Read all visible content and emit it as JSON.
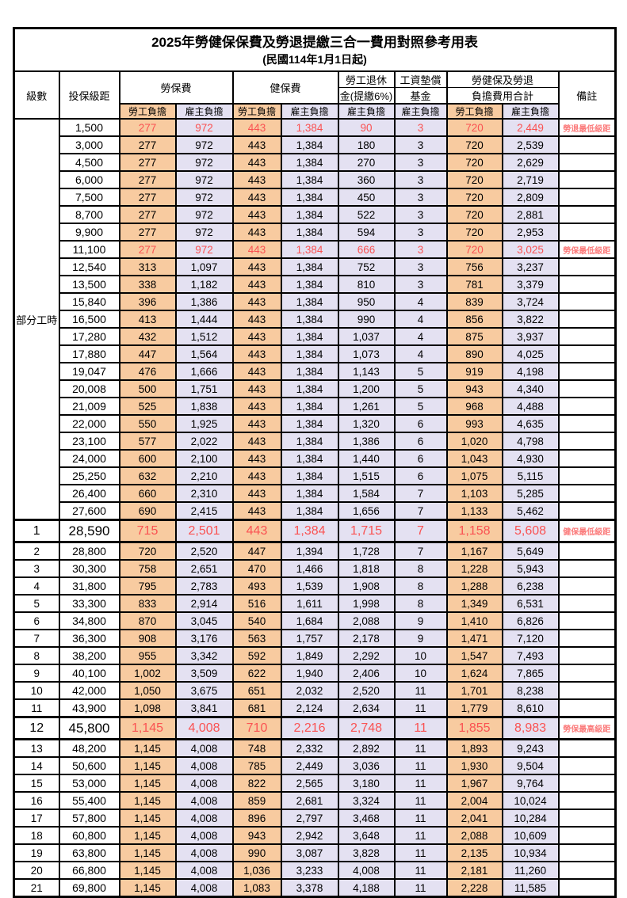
{
  "title": "2025年勞健保保費及勞退提繳三合一費用對照參考用表",
  "subtitle": "(民國114年1月1日起)",
  "part_time_label": "部分工時",
  "part_time_row_count": 23,
  "colors": {
    "employee_column_fill": "#F8CBA0",
    "employer_column_fill": "#E4E1F2",
    "highlight_value_red": "#FA5252",
    "remark_red": "#FB7B7B",
    "grid_line": "#000000"
  },
  "header": {
    "level": "級數",
    "bracket": "投保級距",
    "labor_ins": "勞保費",
    "health_ins": "健保費",
    "pension_line1": "勞工退休",
    "pension_line2": "金(提繳6%)",
    "fund_line1": "工資墊償",
    "fund_line2": "基金",
    "total_line1": "勞健保及勞退",
    "total_line2": "負擔費用合計",
    "note": "備註",
    "employee": "勞工負擔",
    "employer": "雇主負擔"
  },
  "rows": [
    {
      "level": "",
      "bracket": "1,500",
      "li_emp": "277",
      "li_er": "972",
      "hi_emp": "443",
      "hi_er": "1,384",
      "pension": "90",
      "fund": "3",
      "tot_emp": "720",
      "tot_er": "2,449",
      "remark": "勞退最低級距",
      "red": true,
      "big": false
    },
    {
      "level": "",
      "bracket": "3,000",
      "li_emp": "277",
      "li_er": "972",
      "hi_emp": "443",
      "hi_er": "1,384",
      "pension": "180",
      "fund": "3",
      "tot_emp": "720",
      "tot_er": "2,539",
      "remark": "",
      "red": false,
      "big": false
    },
    {
      "level": "",
      "bracket": "4,500",
      "li_emp": "277",
      "li_er": "972",
      "hi_emp": "443",
      "hi_er": "1,384",
      "pension": "270",
      "fund": "3",
      "tot_emp": "720",
      "tot_er": "2,629",
      "remark": "",
      "red": false,
      "big": false
    },
    {
      "level": "",
      "bracket": "6,000",
      "li_emp": "277",
      "li_er": "972",
      "hi_emp": "443",
      "hi_er": "1,384",
      "pension": "360",
      "fund": "3",
      "tot_emp": "720",
      "tot_er": "2,719",
      "remark": "",
      "red": false,
      "big": false
    },
    {
      "level": "",
      "bracket": "7,500",
      "li_emp": "277",
      "li_er": "972",
      "hi_emp": "443",
      "hi_er": "1,384",
      "pension": "450",
      "fund": "3",
      "tot_emp": "720",
      "tot_er": "2,809",
      "remark": "",
      "red": false,
      "big": false
    },
    {
      "level": "",
      "bracket": "8,700",
      "li_emp": "277",
      "li_er": "972",
      "hi_emp": "443",
      "hi_er": "1,384",
      "pension": "522",
      "fund": "3",
      "tot_emp": "720",
      "tot_er": "2,881",
      "remark": "",
      "red": false,
      "big": false
    },
    {
      "level": "",
      "bracket": "9,900",
      "li_emp": "277",
      "li_er": "972",
      "hi_emp": "443",
      "hi_er": "1,384",
      "pension": "594",
      "fund": "3",
      "tot_emp": "720",
      "tot_er": "2,953",
      "remark": "",
      "red": false,
      "big": false
    },
    {
      "level": "",
      "bracket": "11,100",
      "li_emp": "277",
      "li_er": "972",
      "hi_emp": "443",
      "hi_er": "1,384",
      "pension": "666",
      "fund": "3",
      "tot_emp": "720",
      "tot_er": "3,025",
      "remark": "勞保最低級距",
      "red": true,
      "big": false
    },
    {
      "level": "",
      "bracket": "12,540",
      "li_emp": "313",
      "li_er": "1,097",
      "hi_emp": "443",
      "hi_er": "1,384",
      "pension": "752",
      "fund": "3",
      "tot_emp": "756",
      "tot_er": "3,237",
      "remark": "",
      "red": false,
      "big": false
    },
    {
      "level": "",
      "bracket": "13,500",
      "li_emp": "338",
      "li_er": "1,182",
      "hi_emp": "443",
      "hi_er": "1,384",
      "pension": "810",
      "fund": "3",
      "tot_emp": "781",
      "tot_er": "3,379",
      "remark": "",
      "red": false,
      "big": false
    },
    {
      "level": "",
      "bracket": "15,840",
      "li_emp": "396",
      "li_er": "1,386",
      "hi_emp": "443",
      "hi_er": "1,384",
      "pension": "950",
      "fund": "4",
      "tot_emp": "839",
      "tot_er": "3,724",
      "remark": "",
      "red": false,
      "big": false
    },
    {
      "level": "",
      "bracket": "16,500",
      "li_emp": "413",
      "li_er": "1,444",
      "hi_emp": "443",
      "hi_er": "1,384",
      "pension": "990",
      "fund": "4",
      "tot_emp": "856",
      "tot_er": "3,822",
      "remark": "",
      "red": false,
      "big": false
    },
    {
      "level": "",
      "bracket": "17,280",
      "li_emp": "432",
      "li_er": "1,512",
      "hi_emp": "443",
      "hi_er": "1,384",
      "pension": "1,037",
      "fund": "4",
      "tot_emp": "875",
      "tot_er": "3,937",
      "remark": "",
      "red": false,
      "big": false
    },
    {
      "level": "",
      "bracket": "17,880",
      "li_emp": "447",
      "li_er": "1,564",
      "hi_emp": "443",
      "hi_er": "1,384",
      "pension": "1,073",
      "fund": "4",
      "tot_emp": "890",
      "tot_er": "4,025",
      "remark": "",
      "red": false,
      "big": false
    },
    {
      "level": "",
      "bracket": "19,047",
      "li_emp": "476",
      "li_er": "1,666",
      "hi_emp": "443",
      "hi_er": "1,384",
      "pension": "1,143",
      "fund": "5",
      "tot_emp": "919",
      "tot_er": "4,198",
      "remark": "",
      "red": false,
      "big": false
    },
    {
      "level": "",
      "bracket": "20,008",
      "li_emp": "500",
      "li_er": "1,751",
      "hi_emp": "443",
      "hi_er": "1,384",
      "pension": "1,200",
      "fund": "5",
      "tot_emp": "943",
      "tot_er": "4,340",
      "remark": "",
      "red": false,
      "big": false
    },
    {
      "level": "",
      "bracket": "21,009",
      "li_emp": "525",
      "li_er": "1,838",
      "hi_emp": "443",
      "hi_er": "1,384",
      "pension": "1,261",
      "fund": "5",
      "tot_emp": "968",
      "tot_er": "4,488",
      "remark": "",
      "red": false,
      "big": false
    },
    {
      "level": "",
      "bracket": "22,000",
      "li_emp": "550",
      "li_er": "1,925",
      "hi_emp": "443",
      "hi_er": "1,384",
      "pension": "1,320",
      "fund": "6",
      "tot_emp": "993",
      "tot_er": "4,635",
      "remark": "",
      "red": false,
      "big": false
    },
    {
      "level": "",
      "bracket": "23,100",
      "li_emp": "577",
      "li_er": "2,022",
      "hi_emp": "443",
      "hi_er": "1,384",
      "pension": "1,386",
      "fund": "6",
      "tot_emp": "1,020",
      "tot_er": "4,798",
      "remark": "",
      "red": false,
      "big": false
    },
    {
      "level": "",
      "bracket": "24,000",
      "li_emp": "600",
      "li_er": "2,100",
      "hi_emp": "443",
      "hi_er": "1,384",
      "pension": "1,440",
      "fund": "6",
      "tot_emp": "1,043",
      "tot_er": "4,930",
      "remark": "",
      "red": false,
      "big": false
    },
    {
      "level": "",
      "bracket": "25,250",
      "li_emp": "632",
      "li_er": "2,210",
      "hi_emp": "443",
      "hi_er": "1,384",
      "pension": "1,515",
      "fund": "6",
      "tot_emp": "1,075",
      "tot_er": "5,115",
      "remark": "",
      "red": false,
      "big": false
    },
    {
      "level": "",
      "bracket": "26,400",
      "li_emp": "660",
      "li_er": "2,310",
      "hi_emp": "443",
      "hi_er": "1,384",
      "pension": "1,584",
      "fund": "7",
      "tot_emp": "1,103",
      "tot_er": "5,285",
      "remark": "",
      "red": false,
      "big": false
    },
    {
      "level": "",
      "bracket": "27,600",
      "li_emp": "690",
      "li_er": "2,415",
      "hi_emp": "443",
      "hi_er": "1,384",
      "pension": "1,656",
      "fund": "7",
      "tot_emp": "1,133",
      "tot_er": "5,462",
      "remark": "",
      "red": false,
      "big": false
    },
    {
      "level": "1",
      "bracket": "28,590",
      "li_emp": "715",
      "li_er": "2,501",
      "hi_emp": "443",
      "hi_er": "1,384",
      "pension": "1,715",
      "fund": "7",
      "tot_emp": "1,158",
      "tot_er": "5,608",
      "remark": "健保最低級距",
      "red": true,
      "big": true
    },
    {
      "level": "2",
      "bracket": "28,800",
      "li_emp": "720",
      "li_er": "2,520",
      "hi_emp": "447",
      "hi_er": "1,394",
      "pension": "1,728",
      "fund": "7",
      "tot_emp": "1,167",
      "tot_er": "5,649",
      "remark": "",
      "red": false,
      "big": false
    },
    {
      "level": "3",
      "bracket": "30,300",
      "li_emp": "758",
      "li_er": "2,651",
      "hi_emp": "470",
      "hi_er": "1,466",
      "pension": "1,818",
      "fund": "8",
      "tot_emp": "1,228",
      "tot_er": "5,943",
      "remark": "",
      "red": false,
      "big": false
    },
    {
      "level": "4",
      "bracket": "31,800",
      "li_emp": "795",
      "li_er": "2,783",
      "hi_emp": "493",
      "hi_er": "1,539",
      "pension": "1,908",
      "fund": "8",
      "tot_emp": "1,288",
      "tot_er": "6,238",
      "remark": "",
      "red": false,
      "big": false
    },
    {
      "level": "5",
      "bracket": "33,300",
      "li_emp": "833",
      "li_er": "2,914",
      "hi_emp": "516",
      "hi_er": "1,611",
      "pension": "1,998",
      "fund": "8",
      "tot_emp": "1,349",
      "tot_er": "6,531",
      "remark": "",
      "red": false,
      "big": false
    },
    {
      "level": "6",
      "bracket": "34,800",
      "li_emp": "870",
      "li_er": "3,045",
      "hi_emp": "540",
      "hi_er": "1,684",
      "pension": "2,088",
      "fund": "9",
      "tot_emp": "1,410",
      "tot_er": "6,826",
      "remark": "",
      "red": false,
      "big": false
    },
    {
      "level": "7",
      "bracket": "36,300",
      "li_emp": "908",
      "li_er": "3,176",
      "hi_emp": "563",
      "hi_er": "1,757",
      "pension": "2,178",
      "fund": "9",
      "tot_emp": "1,471",
      "tot_er": "7,120",
      "remark": "",
      "red": false,
      "big": false
    },
    {
      "level": "8",
      "bracket": "38,200",
      "li_emp": "955",
      "li_er": "3,342",
      "hi_emp": "592",
      "hi_er": "1,849",
      "pension": "2,292",
      "fund": "10",
      "tot_emp": "1,547",
      "tot_er": "7,493",
      "remark": "",
      "red": false,
      "big": false
    },
    {
      "level": "9",
      "bracket": "40,100",
      "li_emp": "1,002",
      "li_er": "3,509",
      "hi_emp": "622",
      "hi_er": "1,940",
      "pension": "2,406",
      "fund": "10",
      "tot_emp": "1,624",
      "tot_er": "7,865",
      "remark": "",
      "red": false,
      "big": false
    },
    {
      "level": "10",
      "bracket": "42,000",
      "li_emp": "1,050",
      "li_er": "3,675",
      "hi_emp": "651",
      "hi_er": "2,032",
      "pension": "2,520",
      "fund": "11",
      "tot_emp": "1,701",
      "tot_er": "8,238",
      "remark": "",
      "red": false,
      "big": false
    },
    {
      "level": "11",
      "bracket": "43,900",
      "li_emp": "1,098",
      "li_er": "3,841",
      "hi_emp": "681",
      "hi_er": "2,124",
      "pension": "2,634",
      "fund": "11",
      "tot_emp": "1,779",
      "tot_er": "8,610",
      "remark": "",
      "red": false,
      "big": false
    },
    {
      "level": "12",
      "bracket": "45,800",
      "li_emp": "1,145",
      "li_er": "4,008",
      "hi_emp": "710",
      "hi_er": "2,216",
      "pension": "2,748",
      "fund": "11",
      "tot_emp": "1,855",
      "tot_er": "8,983",
      "remark": "勞保最高級距",
      "red": true,
      "big": true
    },
    {
      "level": "13",
      "bracket": "48,200",
      "li_emp": "1,145",
      "li_er": "4,008",
      "hi_emp": "748",
      "hi_er": "2,332",
      "pension": "2,892",
      "fund": "11",
      "tot_emp": "1,893",
      "tot_er": "9,243",
      "remark": "",
      "red": false,
      "big": false
    },
    {
      "level": "14",
      "bracket": "50,600",
      "li_emp": "1,145",
      "li_er": "4,008",
      "hi_emp": "785",
      "hi_er": "2,449",
      "pension": "3,036",
      "fund": "11",
      "tot_emp": "1,930",
      "tot_er": "9,504",
      "remark": "",
      "red": false,
      "big": false
    },
    {
      "level": "15",
      "bracket": "53,000",
      "li_emp": "1,145",
      "li_er": "4,008",
      "hi_emp": "822",
      "hi_er": "2,565",
      "pension": "3,180",
      "fund": "11",
      "tot_emp": "1,967",
      "tot_er": "9,764",
      "remark": "",
      "red": false,
      "big": false
    },
    {
      "level": "16",
      "bracket": "55,400",
      "li_emp": "1,145",
      "li_er": "4,008",
      "hi_emp": "859",
      "hi_er": "2,681",
      "pension": "3,324",
      "fund": "11",
      "tot_emp": "2,004",
      "tot_er": "10,024",
      "remark": "",
      "red": false,
      "big": false
    },
    {
      "level": "17",
      "bracket": "57,800",
      "li_emp": "1,145",
      "li_er": "4,008",
      "hi_emp": "896",
      "hi_er": "2,797",
      "pension": "3,468",
      "fund": "11",
      "tot_emp": "2,041",
      "tot_er": "10,284",
      "remark": "",
      "red": false,
      "big": false
    },
    {
      "level": "18",
      "bracket": "60,800",
      "li_emp": "1,145",
      "li_er": "4,008",
      "hi_emp": "943",
      "hi_er": "2,942",
      "pension": "3,648",
      "fund": "11",
      "tot_emp": "2,088",
      "tot_er": "10,609",
      "remark": "",
      "red": false,
      "big": false
    },
    {
      "level": "19",
      "bracket": "63,800",
      "li_emp": "1,145",
      "li_er": "4,008",
      "hi_emp": "990",
      "hi_er": "3,087",
      "pension": "3,828",
      "fund": "11",
      "tot_emp": "2,135",
      "tot_er": "10,934",
      "remark": "",
      "red": false,
      "big": false
    },
    {
      "level": "20",
      "bracket": "66,800",
      "li_emp": "1,145",
      "li_er": "4,008",
      "hi_emp": "1,036",
      "hi_er": "3,233",
      "pension": "4,008",
      "fund": "11",
      "tot_emp": "2,181",
      "tot_er": "11,260",
      "remark": "",
      "red": false,
      "big": false
    },
    {
      "level": "21",
      "bracket": "69,800",
      "li_emp": "1,145",
      "li_er": "4,008",
      "hi_emp": "1,083",
      "hi_er": "3,378",
      "pension": "4,188",
      "fund": "11",
      "tot_emp": "2,228",
      "tot_er": "11,585",
      "remark": "",
      "red": false,
      "big": false
    }
  ]
}
